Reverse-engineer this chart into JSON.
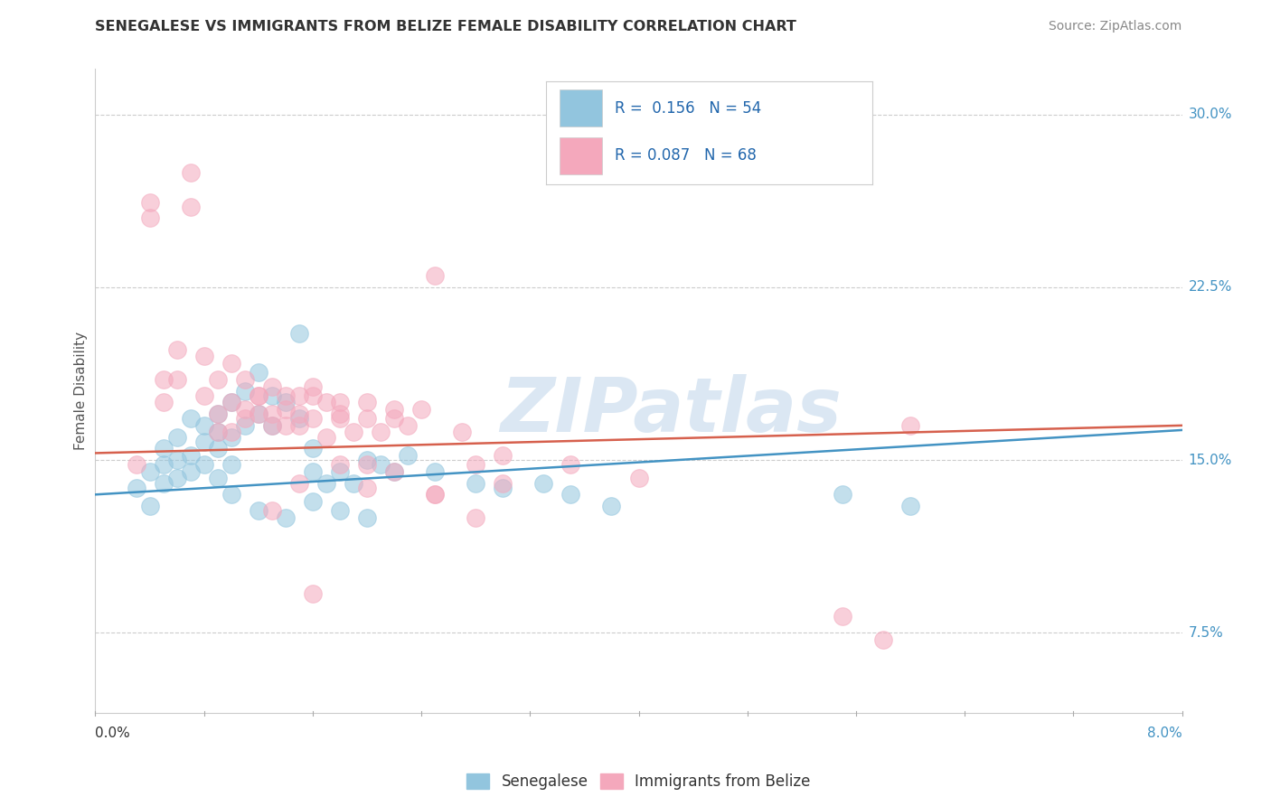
{
  "title": "SENEGALESE VS IMMIGRANTS FROM BELIZE FEMALE DISABILITY CORRELATION CHART",
  "source": "Source: ZipAtlas.com",
  "ylabel": "Female Disability",
  "watermark": "ZIPatlas",
  "legend1_label": "Senegalese",
  "legend2_label": "Immigrants from Belize",
  "R1": "0.156",
  "N1": 54,
  "R2": "0.087",
  "N2": 68,
  "color_blue": "#92c5de",
  "color_pink": "#f4a8bc",
  "color_blue_text": "#2166ac",
  "color_pink_text": "#d6604d",
  "blue_line_color": "#4393c3",
  "pink_line_color": "#d6604d",
  "xlim": [
    0.0,
    0.08
  ],
  "ylim": [
    0.04,
    0.32
  ],
  "yticks": [
    0.075,
    0.15,
    0.225,
    0.3
  ],
  "ytick_labels": [
    "7.5%",
    "15.0%",
    "22.5%",
    "30.0%"
  ],
  "blue_trend_x": [
    0.0,
    0.08
  ],
  "blue_trend_y": [
    0.135,
    0.163
  ],
  "pink_trend_x": [
    0.0,
    0.08
  ],
  "pink_trend_y": [
    0.153,
    0.165
  ],
  "blue_scatter_x": [
    0.003,
    0.004,
    0.004,
    0.005,
    0.005,
    0.005,
    0.006,
    0.006,
    0.006,
    0.007,
    0.007,
    0.007,
    0.008,
    0.008,
    0.008,
    0.009,
    0.009,
    0.009,
    0.009,
    0.01,
    0.01,
    0.01,
    0.011,
    0.011,
    0.012,
    0.012,
    0.013,
    0.013,
    0.014,
    0.015,
    0.015,
    0.016,
    0.016,
    0.017,
    0.018,
    0.019,
    0.02,
    0.021,
    0.022,
    0.023,
    0.025,
    0.028,
    0.03,
    0.033,
    0.035,
    0.038,
    0.055,
    0.06,
    0.01,
    0.012,
    0.014,
    0.016,
    0.018,
    0.02
  ],
  "blue_scatter_y": [
    0.138,
    0.145,
    0.13,
    0.155,
    0.148,
    0.14,
    0.16,
    0.15,
    0.142,
    0.168,
    0.152,
    0.145,
    0.165,
    0.158,
    0.148,
    0.17,
    0.162,
    0.155,
    0.142,
    0.175,
    0.16,
    0.148,
    0.18,
    0.165,
    0.188,
    0.17,
    0.178,
    0.165,
    0.175,
    0.205,
    0.168,
    0.155,
    0.145,
    0.14,
    0.145,
    0.14,
    0.15,
    0.148,
    0.145,
    0.152,
    0.145,
    0.14,
    0.138,
    0.14,
    0.135,
    0.13,
    0.135,
    0.13,
    0.135,
    0.128,
    0.125,
    0.132,
    0.128,
    0.125
  ],
  "pink_scatter_x": [
    0.003,
    0.004,
    0.004,
    0.005,
    0.005,
    0.006,
    0.006,
    0.007,
    0.007,
    0.008,
    0.008,
    0.009,
    0.009,
    0.009,
    0.01,
    0.01,
    0.011,
    0.011,
    0.012,
    0.012,
    0.013,
    0.013,
    0.014,
    0.014,
    0.015,
    0.015,
    0.016,
    0.016,
    0.017,
    0.018,
    0.018,
    0.019,
    0.02,
    0.021,
    0.022,
    0.023,
    0.025,
    0.027,
    0.012,
    0.014,
    0.016,
    0.018,
    0.02,
    0.022,
    0.024,
    0.01,
    0.011,
    0.013,
    0.015,
    0.017,
    0.028,
    0.03,
    0.035,
    0.04,
    0.055,
    0.058,
    0.06,
    0.02,
    0.015,
    0.013,
    0.025,
    0.028,
    0.016,
    0.018,
    0.02,
    0.022,
    0.025,
    0.03
  ],
  "pink_scatter_y": [
    0.148,
    0.262,
    0.255,
    0.185,
    0.175,
    0.198,
    0.185,
    0.275,
    0.26,
    0.195,
    0.178,
    0.185,
    0.17,
    0.162,
    0.192,
    0.175,
    0.185,
    0.168,
    0.178,
    0.17,
    0.182,
    0.17,
    0.178,
    0.165,
    0.178,
    0.165,
    0.182,
    0.168,
    0.175,
    0.168,
    0.175,
    0.162,
    0.168,
    0.162,
    0.172,
    0.165,
    0.23,
    0.162,
    0.178,
    0.172,
    0.178,
    0.17,
    0.175,
    0.168,
    0.172,
    0.162,
    0.172,
    0.165,
    0.17,
    0.16,
    0.148,
    0.152,
    0.148,
    0.142,
    0.082,
    0.072,
    0.165,
    0.148,
    0.14,
    0.128,
    0.135,
    0.125,
    0.092,
    0.148,
    0.138,
    0.145,
    0.135,
    0.14
  ]
}
